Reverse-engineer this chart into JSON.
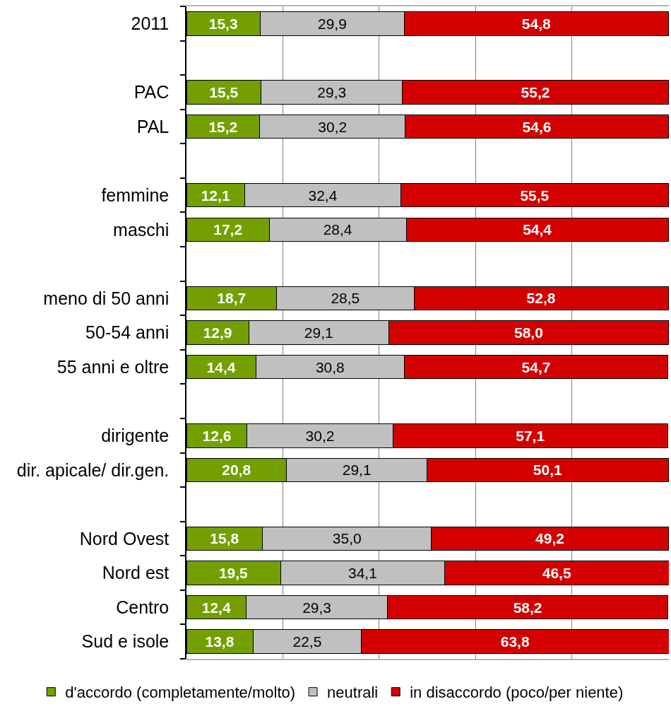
{
  "chart_data": {
    "type": "bar",
    "orientation": "horizontal",
    "stacked": true,
    "categories": [
      "2011",
      null,
      "PAC",
      "PAL",
      null,
      "femmine",
      "maschi",
      null,
      "meno di 50 anni",
      "50-54 anni",
      "55 anni e oltre",
      null,
      "dirigente",
      "dir. apicale/ dir.gen.",
      null,
      "Nord Ovest",
      "Nord est",
      "Centro",
      "Sud e isole"
    ],
    "series": [
      {
        "name": "d'accordo (completamente/molto)",
        "color": "#73a000",
        "values": [
          15.3,
          null,
          15.5,
          15.2,
          null,
          12.1,
          17.2,
          null,
          18.7,
          12.9,
          14.4,
          null,
          12.6,
          20.8,
          null,
          15.8,
          19.5,
          12.4,
          13.8
        ],
        "value_labels": [
          "15,3",
          null,
          "15,5",
          "15,2",
          null,
          "12,1",
          "17,2",
          null,
          "18,7",
          "12,9",
          "14,4",
          null,
          "12,6",
          "20,8",
          null,
          "15,8",
          "19,5",
          "12,4",
          "13,8"
        ]
      },
      {
        "name": "neutrali",
        "color": "#c0c0c0",
        "values": [
          29.9,
          null,
          29.3,
          30.2,
          null,
          32.4,
          28.4,
          null,
          28.5,
          29.1,
          30.8,
          null,
          30.2,
          29.1,
          null,
          35.0,
          34.1,
          29.3,
          22.5
        ],
        "value_labels": [
          "29,9",
          null,
          "29,3",
          "30,2",
          null,
          "32,4",
          "28,4",
          null,
          "28,5",
          "29,1",
          "30,8",
          null,
          "30,2",
          "29,1",
          null,
          "35,0",
          "34,1",
          "29,3",
          "22,5"
        ]
      },
      {
        "name": "in disaccordo (poco/per niente)",
        "color": "#d40000",
        "values": [
          54.8,
          null,
          55.2,
          54.6,
          null,
          55.5,
          54.4,
          null,
          52.8,
          58.0,
          54.7,
          null,
          57.1,
          50.1,
          null,
          49.2,
          46.5,
          58.2,
          63.8
        ],
        "value_labels": [
          "54,8",
          null,
          "55,2",
          "54,6",
          null,
          "55,5",
          "54,4",
          null,
          "52,8",
          "58,0",
          "54,7",
          null,
          "57,1",
          "50,1",
          null,
          "49,2",
          "46,5",
          "58,2",
          "63,8"
        ]
      }
    ],
    "grid": "x",
    "legend": "bottom",
    "tick_labels": "y"
  }
}
